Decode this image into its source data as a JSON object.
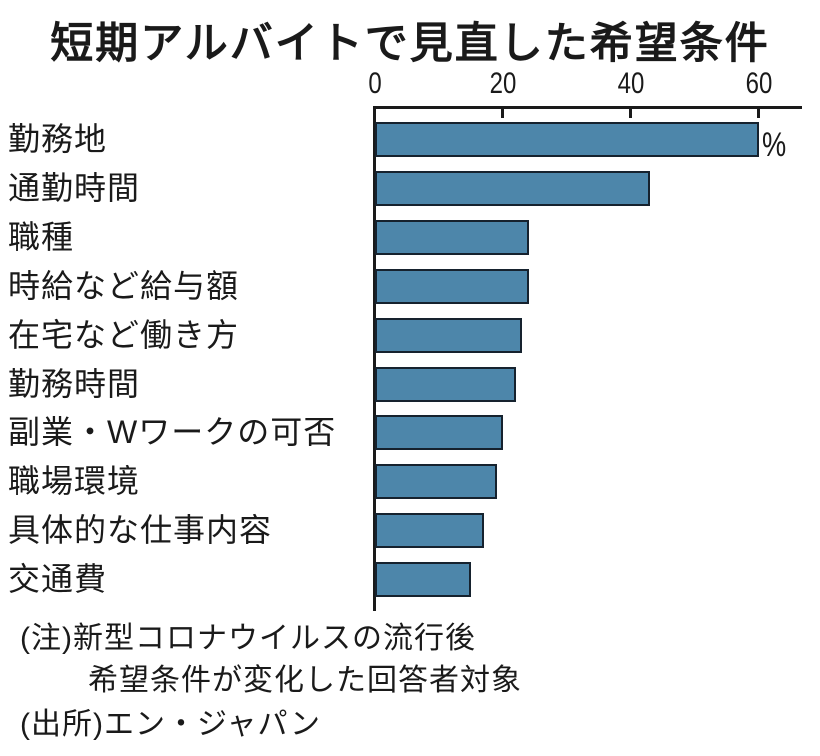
{
  "title": "短期アルバイトで見直した希望条件",
  "annotations": {
    "line1": "(注)新型コロナウイルスの流行後",
    "line2": "希望条件が変化した回答者対象",
    "line3": "(出所)エン・ジャパン"
  },
  "chart_data": {
    "type": "bar",
    "orientation": "horizontal",
    "title": "短期アルバイトで見直した希望条件",
    "unit_label": "%",
    "categories": [
      "勤務地",
      "通勤時間",
      "職種",
      "時給など給与額",
      "在宅など働き方",
      "勤務時間",
      "副業・Wワークの可否",
      "職場環境",
      "具体的な仕事内容",
      "交通費"
    ],
    "values": [
      60,
      43,
      24,
      24,
      23,
      22,
      20,
      19,
      17,
      15
    ],
    "x_ticks": [
      0,
      20,
      40,
      60
    ],
    "xlim": [
      0,
      67
    ],
    "grid": false,
    "legend": false,
    "note": "新型コロナウイルスの流行後、希望条件が変化した回答者対象",
    "source": "エン・ジャパン",
    "colors": {
      "bar": "#4d86aa",
      "bar_border": "#16222e",
      "axis": "#1a1a1a",
      "text": "#1a1a1a",
      "background": "#ffffff"
    }
  }
}
